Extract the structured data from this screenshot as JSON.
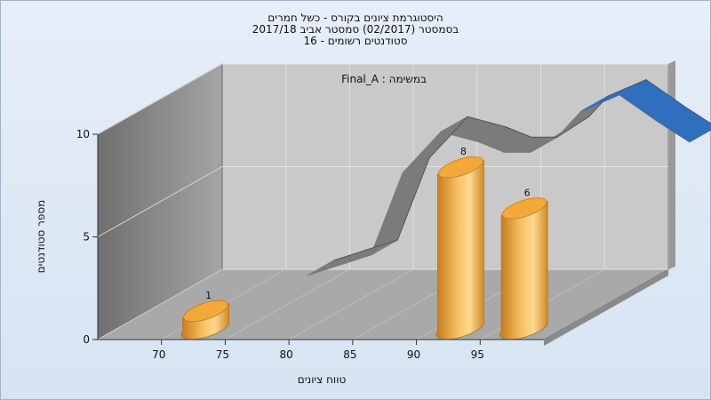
{
  "title_lines": [
    "היסטוגרמת ציונים בקורס - כשל חמרים",
    "בסמסטר  (02/2017)  סמסטר אביב 2017/18",
    "סטודנטים רשומים - 16"
  ],
  "chart_data": {
    "type": "bar",
    "annotation": "Final_A : במשימה",
    "xlabel": "טווח ציונים",
    "ylabel": "מספר סטודנטים",
    "x_ticks": [
      "70",
      "75",
      "80",
      "85",
      "90",
      "95"
    ],
    "y_ticks": [
      "0",
      "5",
      "10"
    ],
    "ylim": [
      0,
      10
    ],
    "bars": [
      {
        "x": 72.5,
        "value": 1,
        "label": "1"
      },
      {
        "x": 92.5,
        "value": 8,
        "label": "8"
      },
      {
        "x": 97.5,
        "value": 6,
        "label": "6"
      }
    ],
    "ribbon": [
      {
        "x": 72.5,
        "value": 0
      },
      {
        "x": 77.5,
        "value": 1
      },
      {
        "x": 80,
        "value": 5
      },
      {
        "x": 83,
        "value": 7
      },
      {
        "x": 86,
        "value": 6.5
      },
      {
        "x": 88,
        "value": 6
      },
      {
        "x": 90,
        "value": 6
      },
      {
        "x": 92.5,
        "value": 7
      },
      {
        "x": 94,
        "value": 8
      },
      {
        "x": 97,
        "value": 8.8
      },
      {
        "x": 100,
        "value": 7.5
      },
      {
        "x": 102.5,
        "value": 6.5
      }
    ],
    "colors": {
      "bar": "#f2a93b",
      "ribbon": "#7b7b7b",
      "ribbon_front": "#2f6fbe",
      "back_wall": "#c8c8c8",
      "side_wall": "#8c8c8c",
      "floor": "#a9a9a9"
    }
  }
}
